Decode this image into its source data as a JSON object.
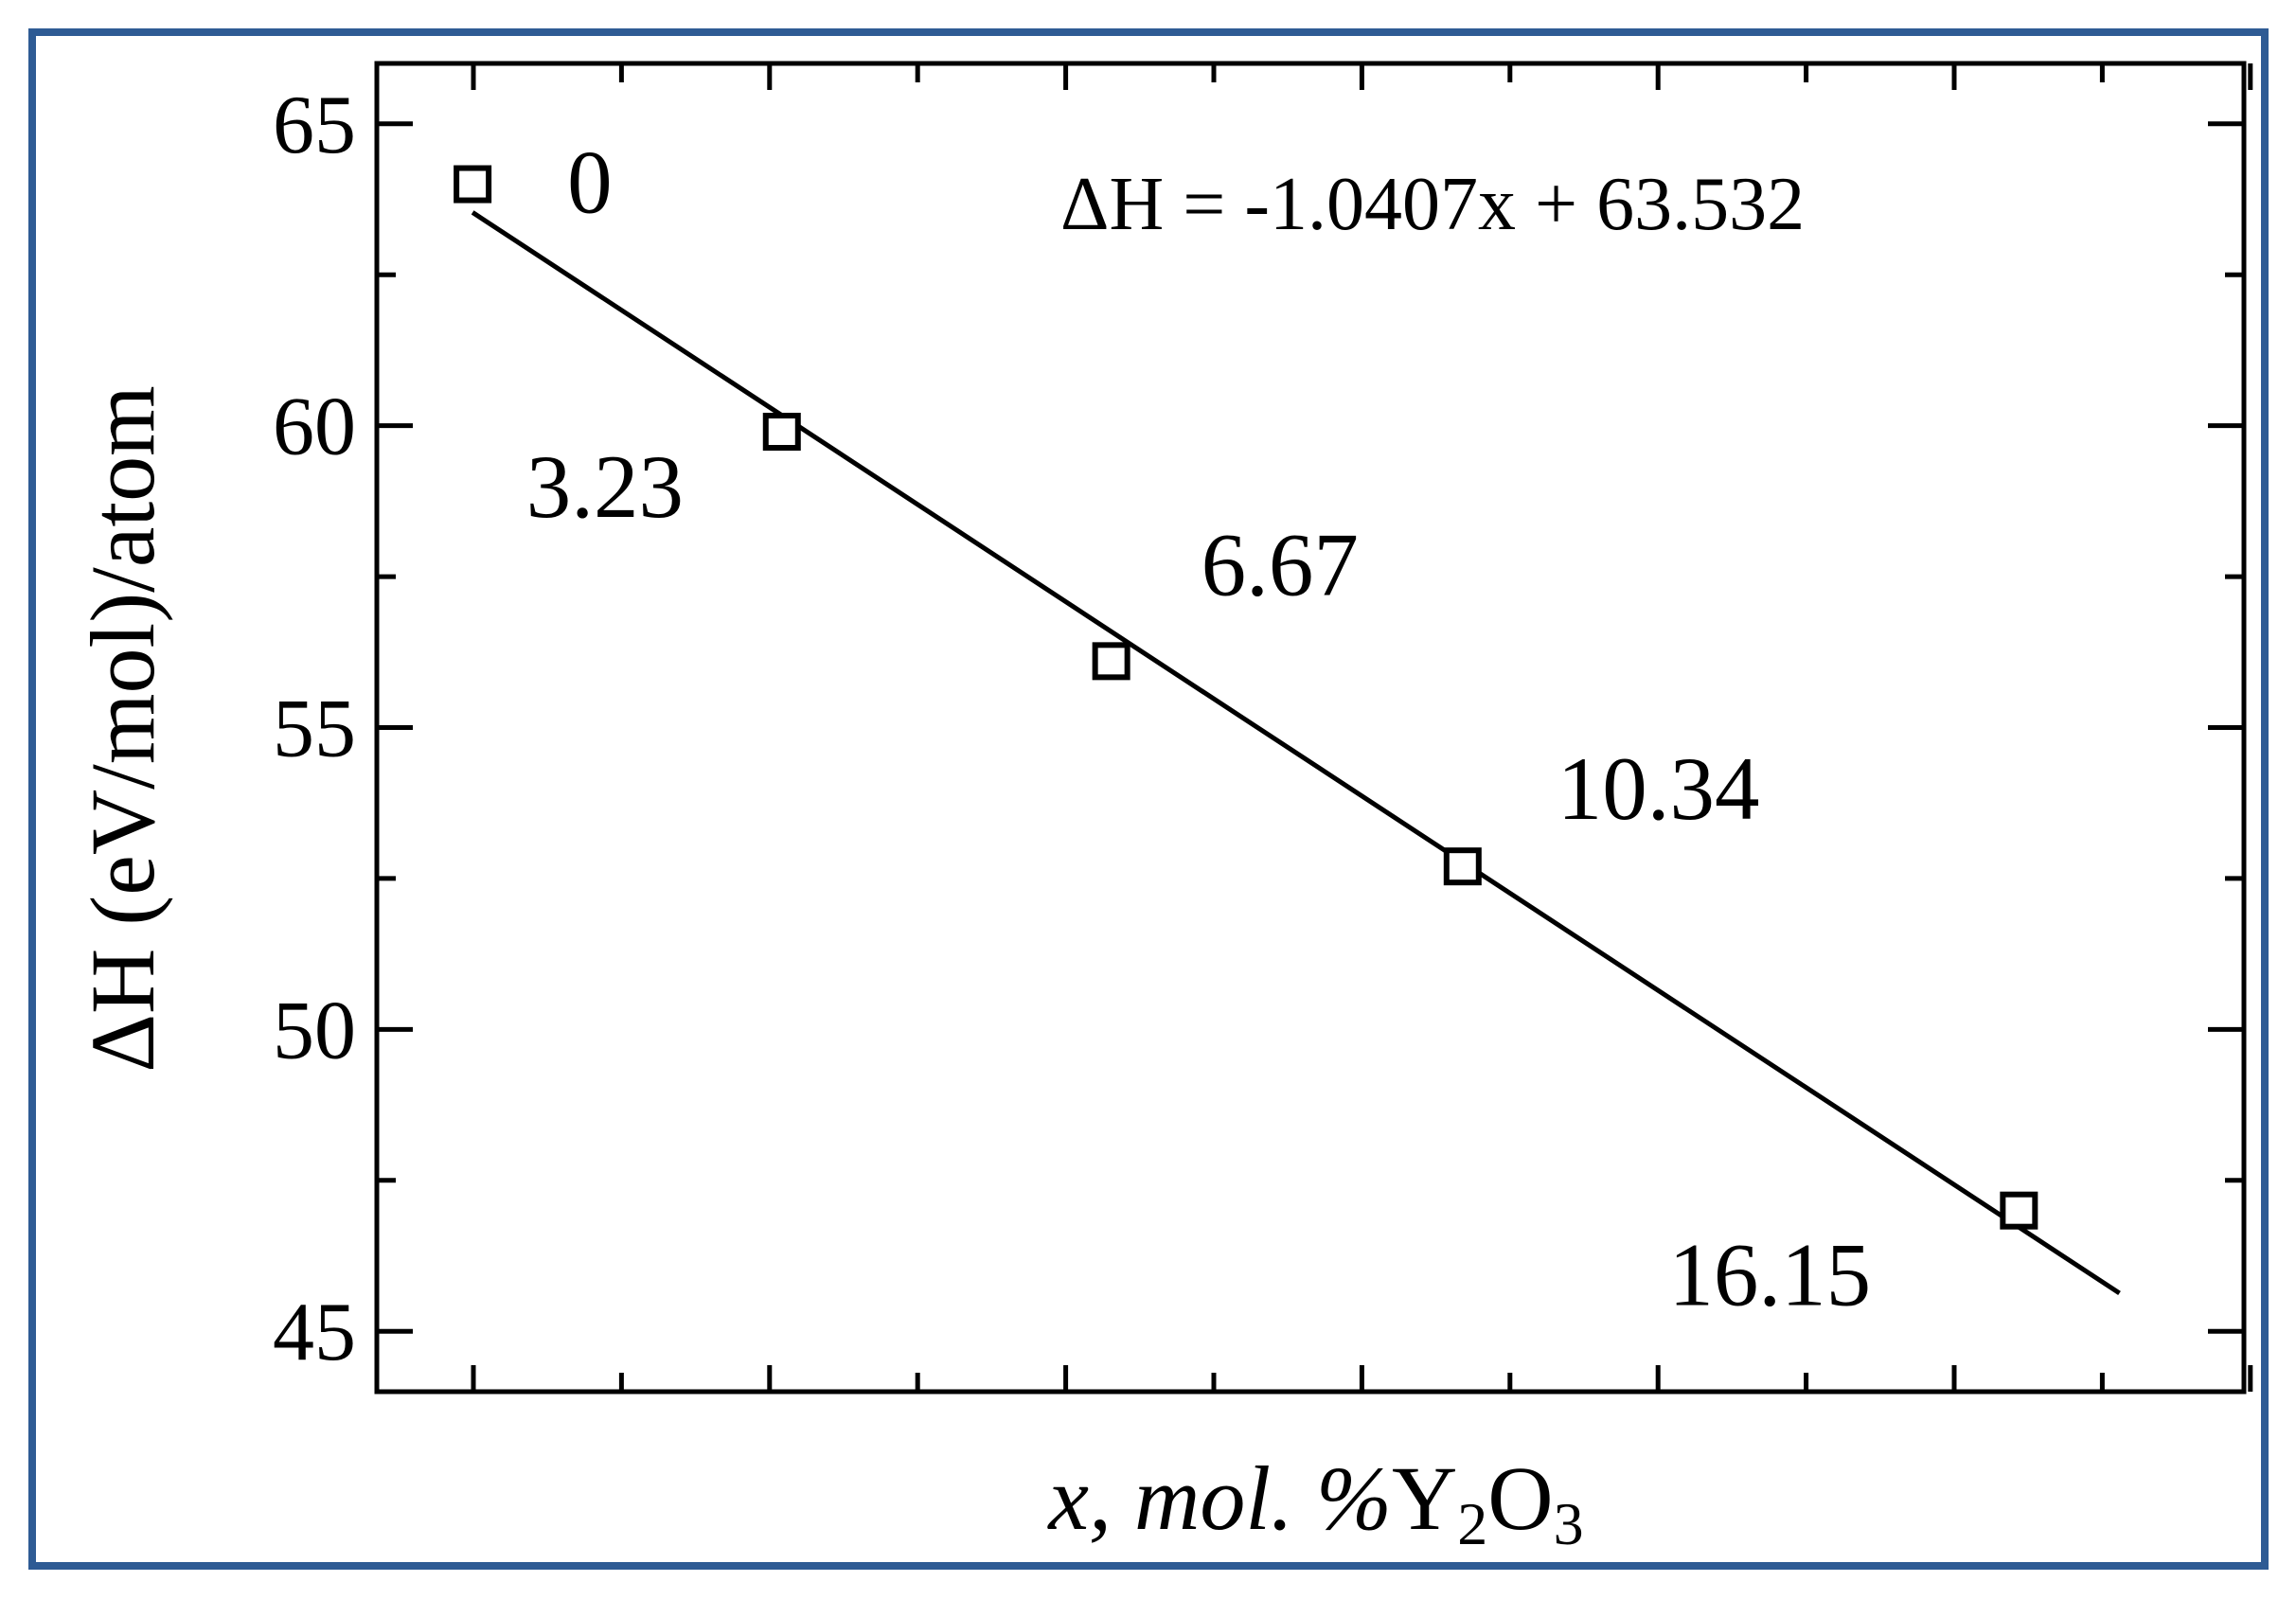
{
  "chart_data": {
    "type": "scatter",
    "title": "",
    "ylabel": "ΔH (eV/mol)/atom",
    "xlabel": {
      "var": "x",
      "text": ", mol. %",
      "formula_parts": [
        "Y",
        "2",
        "O",
        "3"
      ]
    },
    "ylim": [
      44,
      66
    ],
    "xlim": [
      -1,
      18.5
    ],
    "y_ticks": [
      45,
      50,
      55,
      60,
      65
    ],
    "y_minor_ticks": [
      47.5,
      52.5,
      57.5,
      62.5
    ],
    "x_tick_count": 14,
    "x_tick_labels": [],
    "grid": false,
    "legend": "none",
    "series": [
      {
        "marker": "open-square",
        "x": [
          0,
          3.23,
          6.67,
          10.34,
          16.15
        ],
        "y": [
          64.0,
          59.9,
          56.1,
          52.7,
          47.0
        ],
        "point_labels": [
          "0",
          "3.23",
          "6.67",
          "10.34",
          "16.15"
        ]
      }
    ],
    "fit_line": {
      "slope": -1.0407,
      "intercept": 63.532,
      "x_range": [
        0,
        17.2
      ],
      "equation": "ΔH = -1.0407x + 63.532"
    },
    "colors": {
      "frame_border": "#2e5b94",
      "ink": "#000000"
    }
  }
}
